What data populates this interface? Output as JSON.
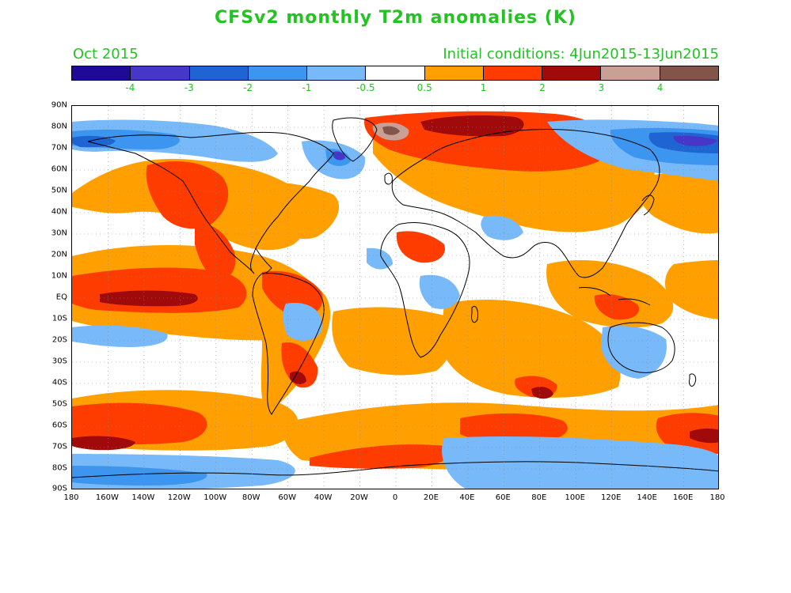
{
  "title": "CFSv2 monthly T2m anomalies (K)",
  "valid_month": "Oct 2015",
  "initial_conditions": "Initial conditions: 4Jun2015-13Jun2015",
  "colorbar": {
    "colors": [
      "#1e0a96",
      "#4637c8",
      "#1e64d2",
      "#3c96f0",
      "#78b9fa",
      "#ffffff",
      "#ffa000",
      "#ff3c00",
      "#a00a0a",
      "#c8a096",
      "#82554b"
    ],
    "labels": [
      "-4",
      "-3",
      "-2",
      "-1",
      "-0.5",
      "0.5",
      "1",
      "2",
      "3",
      "4"
    ]
  },
  "map": {
    "lat_labels": [
      "90N",
      "80N",
      "70N",
      "60N",
      "50N",
      "40N",
      "30N",
      "20N",
      "10N",
      "EQ",
      "10S",
      "20S",
      "30S",
      "40S",
      "50S",
      "60S",
      "70S",
      "80S",
      "90S"
    ],
    "lon_labels": [
      "180",
      "160W",
      "140W",
      "120W",
      "100W",
      "80W",
      "60W",
      "40W",
      "20W",
      "0",
      "20E",
      "40E",
      "60E",
      "80E",
      "100E",
      "120E",
      "140E",
      "160E",
      "180"
    ]
  }
}
